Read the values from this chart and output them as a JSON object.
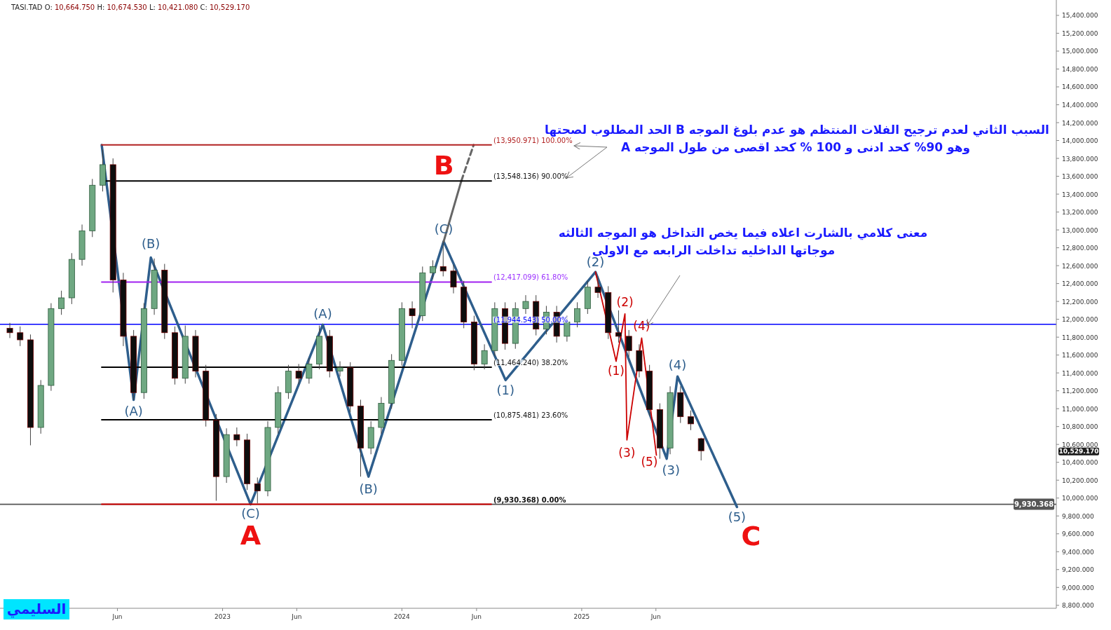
{
  "chart_data": {
    "type": "candlestick",
    "x": [
      "2021-10-25",
      "2021-11-15",
      "2021-12-06",
      "2021-12-27",
      "2022-01-17",
      "2022-02-07",
      "2022-02-28",
      "2022-03-21",
      "2022-04-11",
      "2022-05-02",
      "2022-05-23",
      "2022-06-13",
      "2022-07-04",
      "2022-07-25",
      "2022-08-15",
      "2022-09-05",
      "2022-09-26",
      "2022-10-17",
      "2022-11-07",
      "2022-11-28",
      "2022-12-19",
      "2023-01-09",
      "2023-01-30",
      "2023-02-20",
      "2023-03-13",
      "2023-04-03",
      "2023-04-24",
      "2023-05-15",
      "2023-06-05",
      "2023-06-26",
      "2023-07-17",
      "2023-08-07",
      "2023-08-28",
      "2023-09-18",
      "2023-10-09",
      "2023-10-30",
      "2023-11-20",
      "2023-12-11",
      "2024-01-01",
      "2024-01-22",
      "2024-02-12",
      "2024-03-04",
      "2024-03-25",
      "2024-04-15",
      "2024-05-06",
      "2024-05-27",
      "2024-06-17",
      "2024-07-08",
      "2024-07-29",
      "2024-08-19",
      "2024-09-09",
      "2024-09-30",
      "2024-10-21",
      "2024-11-11",
      "2024-12-02",
      "2024-12-23",
      "2025-01-13",
      "2025-02-03",
      "2025-02-24",
      "2025-03-17",
      "2025-04-07",
      "2025-04-28",
      "2025-05-19",
      "2025-06-09",
      "2025-06-30",
      "2025-07-21",
      "2025-08-11",
      "2025-09-01"
    ],
    "ohlc": [
      [
        11900,
        11960,
        11790,
        11850
      ],
      [
        11850,
        11920,
        11700,
        11770
      ],
      [
        11770,
        11830,
        10590,
        10790
      ],
      [
        10790,
        11320,
        10720,
        11260
      ],
      [
        11260,
        12180,
        11200,
        12120
      ],
      [
        12120,
        12320,
        12050,
        12240
      ],
      [
        12240,
        12740,
        12170,
        12670
      ],
      [
        12670,
        13060,
        12600,
        12990
      ],
      [
        12990,
        13570,
        12920,
        13500
      ],
      [
        13500,
        13900,
        13430,
        13730
      ],
      [
        13730,
        13800,
        12300,
        12440
      ],
      [
        12440,
        12520,
        11700,
        11810
      ],
      [
        11810,
        11880,
        11100,
        11180
      ],
      [
        11180,
        12180,
        11110,
        12120
      ],
      [
        12120,
        12680,
        12050,
        12550
      ],
      [
        12550,
        12620,
        11780,
        11850
      ],
      [
        11850,
        11920,
        11270,
        11340
      ],
      [
        11340,
        11930,
        11280,
        11810
      ],
      [
        11810,
        11880,
        11350,
        11420
      ],
      [
        11420,
        11490,
        10800,
        10870
      ],
      [
        10870,
        10940,
        9970,
        10240
      ],
      [
        10240,
        10780,
        10170,
        10710
      ],
      [
        10710,
        10790,
        10580,
        10650
      ],
      [
        10650,
        10720,
        10090,
        10160
      ],
      [
        10160,
        10230,
        9940,
        10080
      ],
      [
        10080,
        10860,
        10020,
        10790
      ],
      [
        10790,
        11250,
        10720,
        11180
      ],
      [
        11180,
        11490,
        11110,
        11420
      ],
      [
        11420,
        11500,
        11270,
        11340
      ],
      [
        11340,
        11570,
        11280,
        11500
      ],
      [
        11500,
        11930,
        11440,
        11810
      ],
      [
        11810,
        11880,
        11350,
        11420
      ],
      [
        11420,
        11530,
        11360,
        11460
      ],
      [
        11460,
        11520,
        10960,
        11030
      ],
      [
        11030,
        11100,
        10240,
        10560
      ],
      [
        10560,
        10860,
        10490,
        10790
      ],
      [
        10790,
        11130,
        10720,
        11060
      ],
      [
        11060,
        11610,
        11000,
        11540
      ],
      [
        11540,
        12190,
        11480,
        12120
      ],
      [
        12120,
        12200,
        11900,
        12040
      ],
      [
        12040,
        12590,
        11980,
        12520
      ],
      [
        12520,
        12660,
        12450,
        12590
      ],
      [
        12590,
        12870,
        12480,
        12540
      ],
      [
        12540,
        12610,
        12290,
        12360
      ],
      [
        12360,
        12430,
        11900,
        11970
      ],
      [
        11970,
        12040,
        11430,
        11500
      ],
      [
        11500,
        11720,
        11440,
        11650
      ],
      [
        11650,
        12190,
        11590,
        12120
      ],
      [
        12120,
        12190,
        11660,
        11730
      ],
      [
        11730,
        12190,
        11670,
        12120
      ],
      [
        12120,
        12270,
        12060,
        12200
      ],
      [
        12200,
        12270,
        11820,
        11890
      ],
      [
        11890,
        12150,
        11830,
        12080
      ],
      [
        12080,
        12150,
        11740,
        11810
      ],
      [
        11810,
        12040,
        11750,
        11970
      ],
      [
        11970,
        12190,
        11910,
        12120
      ],
      [
        12120,
        12430,
        12060,
        12360
      ],
      [
        12360,
        12480,
        12240,
        12300
      ],
      [
        12300,
        12370,
        11780,
        11850
      ],
      [
        11850,
        12100,
        11740,
        11810
      ],
      [
        11810,
        11880,
        11580,
        11650
      ],
      [
        11650,
        11720,
        11350,
        11420
      ],
      [
        11420,
        11490,
        10920,
        10990
      ],
      [
        10990,
        11060,
        10440,
        10560
      ],
      [
        10560,
        11250,
        10490,
        11180
      ],
      [
        11180,
        11250,
        10840,
        10910
      ],
      [
        10910,
        10980,
        10760,
        10830
      ],
      [
        10664.75,
        10674.53,
        10421.08,
        10529.17
      ]
    ],
    "series": [
      {
        "type": "line",
        "color": "#2e5e8c",
        "x": [
          "2022-04-30",
          "2022-07-04",
          "2022-08-08",
          "2023-02-27",
          "2023-07-24",
          "2023-10-25",
          "2024-03-26",
          "2024-07-30",
          "2025-01-29",
          "2025-06-23",
          "2025-07-15",
          "2025-11-13"
        ],
        "values": [
          13950,
          11100,
          12690,
          9930,
          11940,
          10240,
          12870,
          11320,
          12530,
          10440,
          11360,
          9900
        ]
      },
      {
        "type": "line",
        "color": "#cc0000",
        "x": [
          "2025-01-29",
          "2025-03-12",
          "2025-03-30",
          "2025-04-03",
          "2025-05-03",
          "2025-06-02"
        ],
        "values": [
          12530,
          11530,
          12060,
          10650,
          11790,
          10480
        ]
      },
      {
        "type": "line",
        "color": "#666666",
        "x": [
          "2024-03-26",
          "2024-05-01"
        ],
        "values": [
          12870,
          13548
        ]
      },
      {
        "type": "line",
        "color": "#666666",
        "line_style": "dashed",
        "x": [
          "2024-05-01",
          "2024-05-26"
        ],
        "values": [
          13548,
          13950
        ]
      },
      {
        "type": "line",
        "color": "#b22222",
        "x": [
          "2022-04-30",
          "2024-07-01"
        ],
        "values": [
          13950.971,
          13950.971
        ]
      },
      {
        "type": "line",
        "color": "#000000",
        "x": [
          "2022-04-30",
          "2024-07-01"
        ],
        "values": [
          13548.136,
          13548.136
        ]
      },
      {
        "type": "line",
        "color": "#a020f0",
        "x": [
          "2022-04-30",
          "2024-07-01"
        ],
        "values": [
          12417.099,
          12417.099
        ]
      },
      {
        "type": "line",
        "color": "#000000",
        "x": [
          "2022-04-30",
          "2024-07-01"
        ],
        "values": [
          11464.24,
          11464.24
        ]
      },
      {
        "type": "line",
        "color": "#000000",
        "x": [
          "2022-04-30",
          "2024-07-01"
        ],
        "values": [
          10875.481,
          10875.481
        ]
      },
      {
        "type": "line",
        "color": "#cc0000",
        "x": [
          "2022-04-30",
          "2024-07-01"
        ],
        "values": [
          9930.368,
          9930.368
        ]
      }
    ],
    "ref_lines": [
      {
        "axis": "y",
        "value": 11944.543,
        "color": "#0000ff"
      },
      {
        "axis": "y",
        "value": 9930.368,
        "color": "#555555"
      }
    ],
    "annotations": [
      "TASI.TAD O: 10,664.750 H: 10,674.530 L: 10,421.080 C: 10,529.170",
      "السبب الثاني لعدم ترجيح الفلات المنتظم هو عدم بلوغ الموجه  B الحد المطلوب لصحتها",
      "وهو 90% كحد ادنى و 100 % كحد اقصى من طول الموجه A",
      "معنى كلامي بالشارت اعلاه فيما يخص التداخل هو الموجه الثالثه",
      "موجاتها الداخليه تداخلت الرابعه مع الاولى",
      "السليمي",
      {
        "text": "(13,950.971) 100.00%",
        "x": "2024-07-01",
        "y": 13950.971
      },
      {
        "text": "(13,548.136) 90.00%",
        "x": "2024-07-01",
        "y": 13548.136
      },
      {
        "text": "(12,417.099) 61.80%",
        "x": "2024-07-01",
        "y": 12417.099
      },
      {
        "text": "(11,944.543) 50.00%",
        "x": "2024-07-01",
        "y": 11944.543
      },
      {
        "text": "(11,464.240) 38.20%",
        "x": "2024-07-01",
        "y": 11464.24
      },
      {
        "text": "(10,875.481) 23.60%",
        "x": "2024-07-01",
        "y": 10875.481
      },
      {
        "text": "(9,930.368) 0.00%",
        "x": "2024-07-01",
        "y": 9930.368
      },
      "(B)",
      "(A)",
      "(C)",
      "(A)",
      "(B)",
      "(C)",
      "(1)",
      "(2)",
      "(3)",
      "(4)",
      "(5)",
      "(1)",
      "(2)",
      "(3)",
      "(4)",
      "(5)",
      "A",
      "B",
      "C",
      "10,529.170",
      {
        "text": "9,930.368",
        "x": "2027-07-09",
        "y": 9930.368
      }
    ],
    "xlim": [
      "2021-10-05",
      "2027-08-25"
    ],
    "xticks": [
      {
        "value": "2022-06-01",
        "label": "Jun"
      },
      {
        "value": "2023-01-01",
        "label": "2023"
      },
      {
        "value": "2023-06-01",
        "label": "Jun"
      },
      {
        "value": "2024-01-01",
        "label": "2024"
      },
      {
        "value": "2024-06-01",
        "label": "Jun"
      },
      {
        "value": "2025-01-01",
        "label": "2025"
      },
      {
        "value": "2025-06-01",
        "label": "Jun"
      }
    ],
    "ylim": [
      8767,
      15572
    ],
    "yticks": [
      {
        "value": 8800,
        "label": "8,800.000"
      },
      {
        "value": 9000,
        "label": "9,000.000"
      },
      {
        "value": 9200,
        "label": "9,200.000"
      },
      {
        "value": 9400,
        "label": "9,400.000"
      },
      {
        "value": 9600,
        "label": "9,600.000"
      },
      {
        "value": 9800,
        "label": "9,800.000"
      },
      {
        "value": 10000,
        "label": "10,000.000"
      },
      {
        "value": 10200,
        "label": "10,200.000"
      },
      {
        "value": 10400,
        "label": "10,400.000"
      },
      {
        "value": 10600,
        "label": "10,600.000"
      },
      {
        "value": 10800,
        "label": "10,800.000"
      },
      {
        "value": 11000,
        "label": "11,000.000"
      },
      {
        "value": 11200,
        "label": "11,200.000"
      },
      {
        "value": 11400,
        "label": "11,400.000"
      },
      {
        "value": 11600,
        "label": "11,600.000"
      },
      {
        "value": 11800,
        "label": "11,800.000"
      },
      {
        "value": 12000,
        "label": "12,000.000"
      },
      {
        "value": 12200,
        "label": "12,200.000"
      },
      {
        "value": 12400,
        "label": "12,400.000"
      },
      {
        "value": 12600,
        "label": "12,600.000"
      },
      {
        "value": 12800,
        "label": "12,800.000"
      },
      {
        "value": 13000,
        "label": "13,000.000"
      },
      {
        "value": 13200,
        "label": "13,200.000"
      },
      {
        "value": 13400,
        "label": "13,400.000"
      },
      {
        "value": 13600,
        "label": "13,600.000"
      },
      {
        "value": 13800,
        "label": "13,800.000"
      },
      {
        "value": 14000,
        "label": "14,000.000"
      },
      {
        "value": 14200,
        "label": "14,200.000"
      },
      {
        "value": 14400,
        "label": "14,400.000"
      },
      {
        "value": 14600,
        "label": "14,600.000"
      },
      {
        "value": 14800,
        "label": "14,800.000"
      },
      {
        "value": 15000,
        "label": "15,000.000"
      },
      {
        "value": 15200,
        "label": "15,200.000"
      },
      {
        "value": 15400,
        "label": "15,400.000"
      }
    ]
  }
}
